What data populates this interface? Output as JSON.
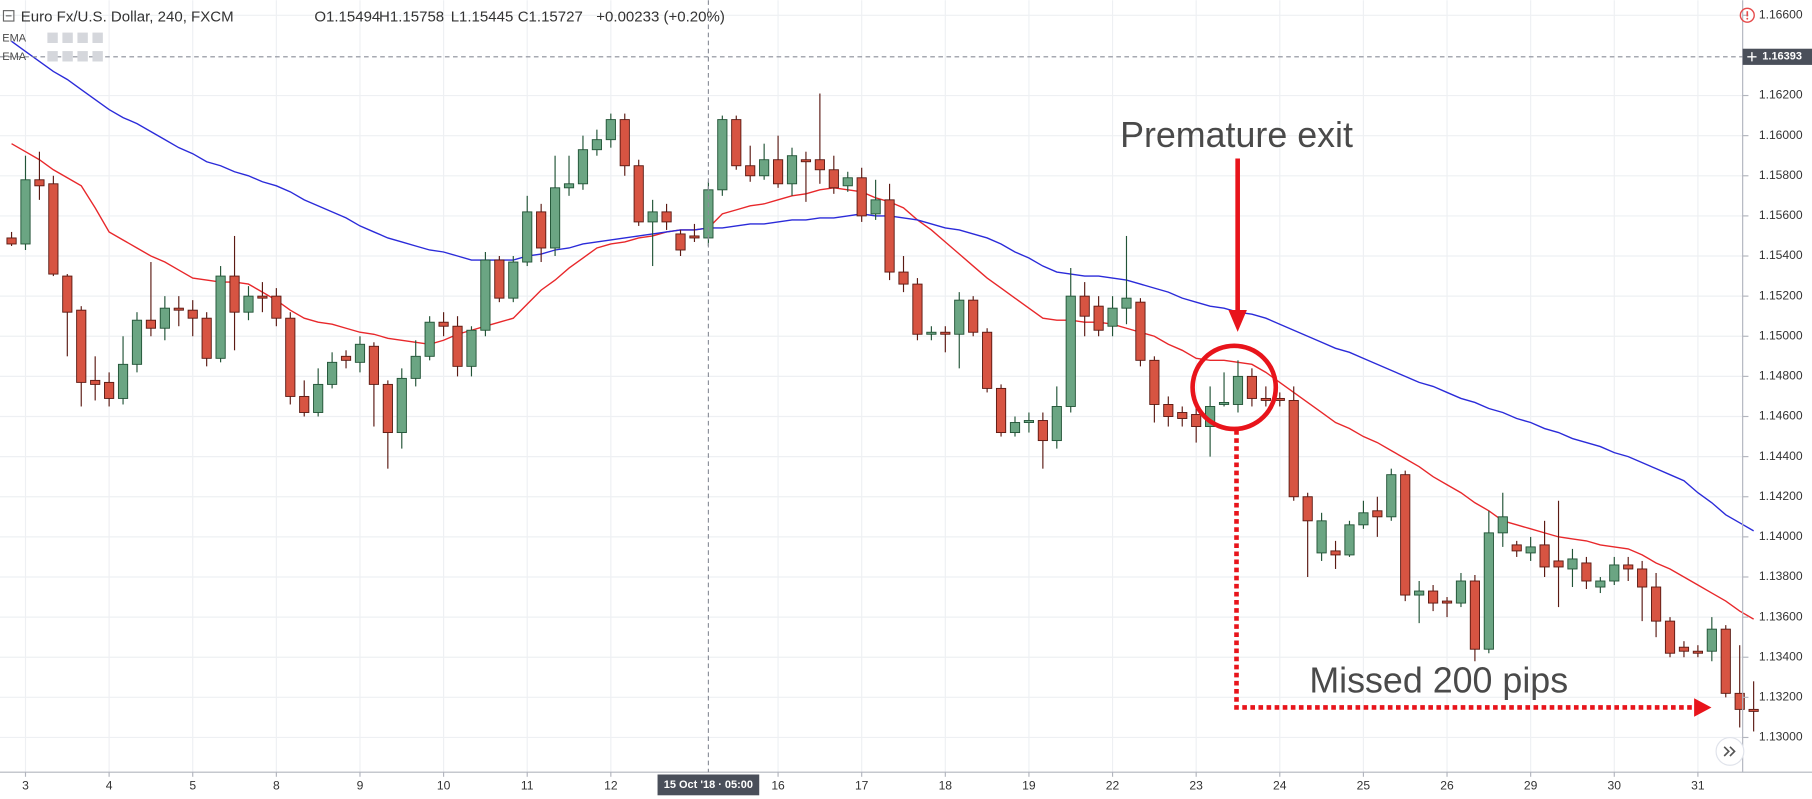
{
  "chart_data": {
    "type": "candlestick",
    "title": "Euro Fx/U.S. Dollar, 240, FXCM",
    "header_values": [
      "O1.15494",
      "H1.15758",
      "L1.15445",
      "C1.15727",
      "+0.00233 (+0.20%)"
    ],
    "annotations": [
      "Premature exit",
      "Missed 200 pips"
    ],
    "annotation_color": "#e8141b",
    "crosshair": {
      "x_label": "15 Oct '18 · 05:00",
      "y": 1.16393
    },
    "up_color": "#6ba583",
    "down_color": "#d75442",
    "grid": true,
    "ylim": [
      1.12827,
      1.16675
    ],
    "yticks": [
      {
        "value": 1.13,
        "label": "1.13000"
      },
      {
        "value": 1.132,
        "label": "1.13200"
      },
      {
        "value": 1.134,
        "label": "1.13400"
      },
      {
        "value": 1.136,
        "label": "1.13600"
      },
      {
        "value": 1.138,
        "label": "1.13800"
      },
      {
        "value": 1.14,
        "label": "1.14000"
      },
      {
        "value": 1.142,
        "label": "1.14200"
      },
      {
        "value": 1.144,
        "label": "1.14400"
      },
      {
        "value": 1.146,
        "label": "1.14600"
      },
      {
        "value": 1.148,
        "label": "1.14800"
      },
      {
        "value": 1.15,
        "label": "1.15000"
      },
      {
        "value": 1.152,
        "label": "1.15200"
      },
      {
        "value": 1.154,
        "label": "1.15400"
      },
      {
        "value": 1.156,
        "label": "1.15600"
      },
      {
        "value": 1.158,
        "label": "1.15800"
      },
      {
        "value": 1.16,
        "label": "1.16000"
      },
      {
        "value": 1.162,
        "label": "1.16200"
      },
      {
        "value": 1.166,
        "label": "1.16600"
      }
    ],
    "categories": [
      null,
      "3",
      null,
      null,
      null,
      null,
      null,
      "4",
      null,
      null,
      null,
      null,
      null,
      "5",
      null,
      null,
      null,
      null,
      null,
      "8",
      null,
      null,
      null,
      null,
      null,
      "9",
      null,
      null,
      null,
      null,
      null,
      "10",
      null,
      null,
      null,
      null,
      null,
      "11",
      null,
      null,
      null,
      null,
      null,
      "12",
      null,
      null,
      null,
      null,
      null,
      null,
      null,
      null,
      null,
      null,
      null,
      "16",
      null,
      null,
      null,
      null,
      null,
      "17",
      null,
      null,
      null,
      null,
      null,
      "18",
      null,
      null,
      null,
      null,
      null,
      "19",
      null,
      null,
      null,
      null,
      null,
      "22",
      null,
      null,
      null,
      null,
      null,
      "23",
      null,
      null,
      null,
      null,
      null,
      "24",
      null,
      null,
      null,
      null,
      null,
      "25",
      null,
      null,
      null,
      null,
      null,
      "26",
      null,
      null,
      null,
      null,
      null,
      "29",
      null,
      null,
      null,
      null,
      null,
      "30",
      null,
      null,
      null,
      null,
      null,
      "31",
      null,
      null,
      null,
      null
    ],
    "open": [
      1.1549,
      1.1546,
      1.1578,
      1.1576,
      1.153,
      1.1513,
      1.1478,
      1.1477,
      1.1469,
      1.1486,
      1.1508,
      1.1504,
      1.1514,
      1.1513,
      1.1509,
      1.1489,
      1.153,
      1.1512,
      1.152,
      1.152,
      1.1509,
      1.147,
      1.1462,
      1.1476,
      1.149,
      1.1487,
      1.1495,
      1.1476,
      1.1452,
      1.1479,
      1.149,
      1.1507,
      1.1505,
      1.1485,
      1.1503,
      1.1538,
      1.1519,
      1.1537,
      1.1562,
      1.1544,
      1.1574,
      1.1576,
      1.1593,
      1.1598,
      1.1608,
      1.1585,
      1.1557,
      1.1562,
      1.1551,
      1.155,
      1.1549,
      1.1573,
      1.1608,
      1.1585,
      1.158,
      1.1588,
      1.1576,
      1.1588,
      1.1588,
      1.1583,
      1.1575,
      1.1579,
      1.1561,
      1.1568,
      1.1532,
      1.1526,
      1.1501,
      1.1502,
      1.1501,
      1.1518,
      1.1502,
      1.1474,
      1.1452,
      1.1457,
      1.1458,
      1.1448,
      1.1465,
      1.152,
      1.1515,
      1.1505,
      1.1514,
      1.1517,
      1.1488,
      1.1466,
      1.1462,
      1.1461,
      1.1455,
      1.1466,
      1.1466,
      1.148,
      1.1469,
      1.1469,
      1.1468,
      1.142,
      1.1392,
      1.1393,
      1.1391,
      1.1406,
      1.1413,
      1.141,
      1.1431,
      1.1371,
      1.1373,
      1.1368,
      1.1367,
      1.1378,
      1.1344,
      1.1402,
      1.1396,
      1.1392,
      1.1396,
      1.1388,
      1.1384,
      1.1387,
      1.1375,
      1.1378,
      1.1386,
      1.1384,
      1.1375,
      1.1358,
      1.1345,
      1.1343,
      1.1343,
      1.1354,
      1.1322,
      1.1314
    ],
    "high": [
      1.1552,
      1.159,
      1.1592,
      1.158,
      1.1531,
      1.1515,
      1.149,
      1.1482,
      1.15,
      1.1512,
      1.1537,
      1.152,
      1.152,
      1.1518,
      1.1512,
      1.1535,
      1.155,
      1.1525,
      1.1527,
      1.1524,
      1.1512,
      1.1478,
      1.1484,
      1.1492,
      1.1493,
      1.15,
      1.1497,
      1.1478,
      1.1484,
      1.1498,
      1.151,
      1.1512,
      1.151,
      1.1505,
      1.1542,
      1.154,
      1.154,
      1.157,
      1.1566,
      1.159,
      1.159,
      1.16,
      1.1603,
      1.1611,
      1.1611,
      1.1588,
      1.1568,
      1.1566,
      1.1553,
      1.1556,
      1.1577,
      1.161,
      1.161,
      1.1595,
      1.1596,
      1.16,
      1.1594,
      1.1592,
      1.1621,
      1.159,
      1.1582,
      1.1584,
      1.1578,
      1.1576,
      1.154,
      1.1529,
      1.1505,
      1.1505,
      1.1522,
      1.152,
      1.1504,
      1.1476,
      1.146,
      1.1462,
      1.1462,
      1.1475,
      1.1534,
      1.1527,
      1.152,
      1.152,
      1.155,
      1.1519,
      1.149,
      1.147,
      1.1465,
      1.1465,
      1.1475,
      1.1482,
      1.1488,
      1.1484,
      1.1475,
      1.1472,
      1.1475,
      1.1422,
      1.1412,
      1.1398,
      1.1408,
      1.1418,
      1.142,
      1.1434,
      1.1433,
      1.1378,
      1.1376,
      1.137,
      1.1382,
      1.1381,
      1.1413,
      1.1422,
      1.1398,
      1.14,
      1.1408,
      1.1418,
      1.1394,
      1.139,
      1.138,
      1.139,
      1.139,
      1.1388,
      1.1382,
      1.136,
      1.1348,
      1.1346,
      1.136,
      1.1356,
      1.1346,
      1.1328
    ],
    "low": [
      1.1545,
      1.1543,
      1.1568,
      1.153,
      1.149,
      1.1465,
      1.1468,
      1.1465,
      1.1466,
      1.1482,
      1.15,
      1.1498,
      1.1505,
      1.15,
      1.1485,
      1.1487,
      1.1493,
      1.1508,
      1.1512,
      1.1505,
      1.1466,
      1.146,
      1.146,
      1.1474,
      1.1484,
      1.1482,
      1.1455,
      1.1434,
      1.1444,
      1.1475,
      1.1488,
      1.15,
      1.148,
      1.148,
      1.15,
      1.1517,
      1.1517,
      1.1535,
      1.1537,
      1.154,
      1.157,
      1.1573,
      1.159,
      1.1594,
      1.158,
      1.1555,
      1.1535,
      1.1553,
      1.154,
      1.1547,
      1.1545,
      1.157,
      1.1583,
      1.1577,
      1.1578,
      1.1574,
      1.157,
      1.1567,
      1.1576,
      1.1571,
      1.1572,
      1.1557,
      1.1558,
      1.1528,
      1.1522,
      1.1498,
      1.1498,
      1.1492,
      1.1484,
      1.15,
      1.1472,
      1.145,
      1.145,
      1.1452,
      1.1434,
      1.1444,
      1.1462,
      1.15,
      1.15,
      1.15,
      1.1506,
      1.1485,
      1.1457,
      1.1455,
      1.1455,
      1.1447,
      1.144,
      1.1465,
      1.1462,
      1.1465,
      1.1465,
      1.1465,
      1.1418,
      1.138,
      1.1388,
      1.1384,
      1.139,
      1.1404,
      1.14,
      1.1408,
      1.1368,
      1.1357,
      1.1363,
      1.136,
      1.1365,
      1.1338,
      1.1342,
      1.1395,
      1.139,
      1.1388,
      1.138,
      1.1365,
      1.1375,
      1.1374,
      1.1372,
      1.1376,
      1.1378,
      1.1358,
      1.135,
      1.134,
      1.134,
      1.134,
      1.1338,
      1.132,
      1.1305,
      1.1303
    ],
    "close": [
      1.1546,
      1.1578,
      1.1575,
      1.1531,
      1.1512,
      1.1477,
      1.1476,
      1.1469,
      1.1486,
      1.1508,
      1.1504,
      1.1514,
      1.1513,
      1.1509,
      1.1489,
      1.153,
      1.1512,
      1.152,
      1.1519,
      1.1509,
      1.147,
      1.1462,
      1.1476,
      1.1487,
      1.1488,
      1.1496,
      1.1476,
      1.1452,
      1.1479,
      1.149,
      1.1507,
      1.1505,
      1.1485,
      1.1503,
      1.1538,
      1.1519,
      1.1537,
      1.1562,
      1.1544,
      1.1574,
      1.1576,
      1.1593,
      1.1598,
      1.1608,
      1.1585,
      1.1557,
      1.1562,
      1.1557,
      1.1543,
      1.1549,
      1.1573,
      1.1608,
      1.1585,
      1.158,
      1.1588,
      1.1576,
      1.159,
      1.1587,
      1.1583,
      1.1574,
      1.1579,
      1.156,
      1.1568,
      1.1532,
      1.1526,
      1.1501,
      1.1502,
      1.1501,
      1.1518,
      1.1502,
      1.1474,
      1.1452,
      1.1457,
      1.1458,
      1.1448,
      1.1465,
      1.152,
      1.151,
      1.1503,
      1.1514,
      1.1519,
      1.1488,
      1.1466,
      1.146,
      1.1459,
      1.1455,
      1.1465,
      1.1467,
      1.148,
      1.1469,
      1.1468,
      1.1468,
      1.142,
      1.1408,
      1.1408,
      1.1391,
      1.1406,
      1.1412,
      1.141,
      1.1431,
      1.1371,
      1.1373,
      1.1367,
      1.1367,
      1.1378,
      1.1344,
      1.1402,
      1.141,
      1.1393,
      1.1395,
      1.1385,
      1.1385,
      1.1389,
      1.1378,
      1.1378,
      1.1386,
      1.1384,
      1.1375,
      1.1358,
      1.1342,
      1.1343,
      1.1342,
      1.1354,
      1.1322,
      1.1314,
      1.1313
    ],
    "series": [
      {
        "name": "EMA",
        "color": "#e8282b",
        "values": [
          1.1596,
          1.1592,
          1.1588,
          1.1583,
          1.1579,
          1.1575,
          1.1564,
          1.1552,
          1.1548,
          1.1544,
          1.154,
          1.1537,
          1.1533,
          1.1529,
          1.1528,
          1.1527,
          1.1527,
          1.1526,
          1.1522,
          1.1518,
          1.1513,
          1.1509,
          1.1507,
          1.1506,
          1.1504,
          1.1502,
          1.1501,
          1.1499,
          1.1498,
          1.1497,
          1.1496,
          1.1498,
          1.1501,
          1.1503,
          1.1505,
          1.1507,
          1.1509,
          1.1516,
          1.1523,
          1.1528,
          1.1534,
          1.1539,
          1.1544,
          1.1546,
          1.1547,
          1.1549,
          1.155,
          1.1552,
          1.1553,
          1.1553,
          1.1554,
          1.1561,
          1.1563,
          1.1565,
          1.1566,
          1.1568,
          1.157,
          1.1571,
          1.1573,
          1.1574,
          1.1573,
          1.1572,
          1.1569,
          1.1567,
          1.1564,
          1.1558,
          1.1553,
          1.1547,
          1.1541,
          1.1535,
          1.1529,
          1.1524,
          1.1519,
          1.1514,
          1.1509,
          1.1508,
          1.1508,
          1.1507,
          1.1507,
          1.1506,
          1.1504,
          1.1502,
          1.15,
          1.1496,
          1.1493,
          1.1489,
          1.1488,
          1.1488,
          1.1487,
          1.1486,
          1.1482,
          1.1477,
          1.1472,
          1.1467,
          1.1462,
          1.1457,
          1.1454,
          1.145,
          1.1447,
          1.1443,
          1.1439,
          1.1435,
          1.143,
          1.1426,
          1.1422,
          1.1417,
          1.1413,
          1.1408,
          1.1406,
          1.1404,
          1.1402,
          1.14,
          1.1399,
          1.1398,
          1.1396,
          1.1395,
          1.1394,
          1.1391,
          1.1387,
          1.1384,
          1.138,
          1.1376,
          1.1372,
          1.1368,
          1.1363,
          1.1359
        ]
      },
      {
        "name": "EMA",
        "color": "#2b2bd9",
        "values": [
          1.1647,
          1.1642,
          1.1637,
          1.1632,
          1.1628,
          1.1623,
          1.1618,
          1.1613,
          1.1609,
          1.1606,
          1.1602,
          1.1598,
          1.1594,
          1.1591,
          1.1587,
          1.1585,
          1.1582,
          1.158,
          1.1577,
          1.1575,
          1.1572,
          1.1568,
          1.1565,
          1.1562,
          1.1559,
          1.1555,
          1.1552,
          1.1549,
          1.1547,
          1.1545,
          1.1543,
          1.1542,
          1.154,
          1.1538,
          1.1538,
          1.1538,
          1.1538,
          1.154,
          1.1541,
          1.1543,
          1.1544,
          1.1546,
          1.1547,
          1.1548,
          1.1549,
          1.155,
          1.1551,
          1.1552,
          1.1553,
          1.1553,
          1.1554,
          1.1554,
          1.1555,
          1.1556,
          1.1556,
          1.1557,
          1.1558,
          1.1558,
          1.1559,
          1.1559,
          1.156,
          1.1561,
          1.156,
          1.156,
          1.1559,
          1.1558,
          1.1556,
          1.1554,
          1.1553,
          1.1551,
          1.1549,
          1.1546,
          1.1542,
          1.1539,
          1.1535,
          1.1532,
          1.1531,
          1.153,
          1.153,
          1.1529,
          1.1528,
          1.1526,
          1.1524,
          1.1522,
          1.1519,
          1.1517,
          1.1515,
          1.1514,
          1.1512,
          1.1511,
          1.1509,
          1.1506,
          1.1503,
          1.15,
          1.1497,
          1.1494,
          1.1492,
          1.1489,
          1.1486,
          1.1483,
          1.148,
          1.1477,
          1.1475,
          1.1472,
          1.1469,
          1.1467,
          1.1464,
          1.1462,
          1.1459,
          1.1457,
          1.1454,
          1.1452,
          1.1449,
          1.1447,
          1.1445,
          1.1442,
          1.144,
          1.1437,
          1.1434,
          1.1431,
          1.1428,
          1.1422,
          1.1417,
          1.1411,
          1.1407,
          1.1403
        ]
      }
    ]
  }
}
